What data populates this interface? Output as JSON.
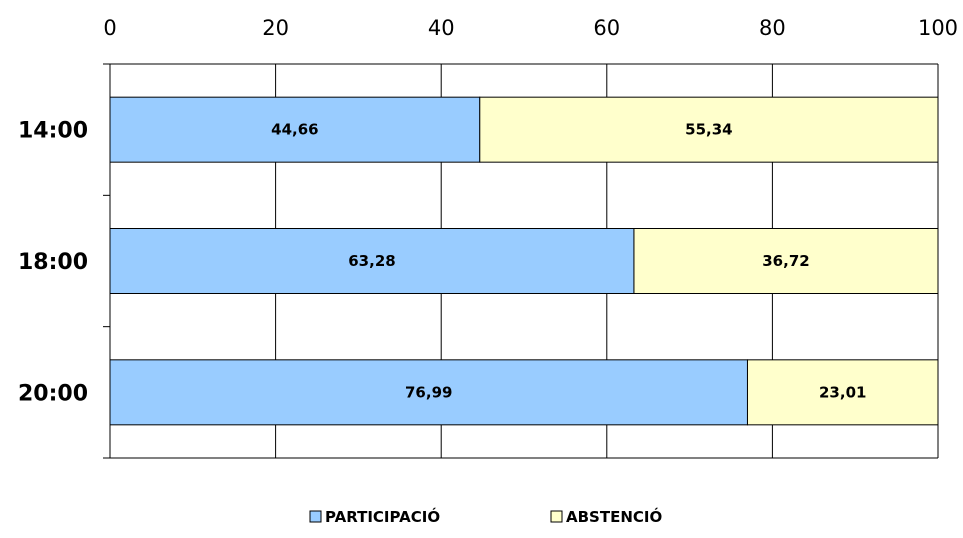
{
  "chart_data": {
    "type": "bar",
    "orientation": "horizontal",
    "stacked": true,
    "categories": [
      "14:00",
      "18:00",
      "20:00"
    ],
    "series": [
      {
        "name": "PARTICIPACIÓ",
        "values": [
          44.66,
          63.28,
          76.99
        ],
        "labels": [
          "44,66",
          "63,28",
          "76,99"
        ],
        "color": "#99ccff"
      },
      {
        "name": "ABSTENCIÓ",
        "values": [
          55.34,
          36.72,
          23.01
        ],
        "labels": [
          "55,34",
          "36,72",
          "23,01"
        ],
        "color": "#ffffcc"
      }
    ],
    "xlim": [
      0,
      100
    ],
    "xticks": [
      0,
      20,
      40,
      60,
      80,
      100
    ],
    "xtick_labels": [
      "0",
      "20",
      "40",
      "60",
      "80",
      "100"
    ],
    "x_axis_position": "top",
    "grid": true,
    "legend_position": "bottom",
    "title": "",
    "xlabel": "",
    "ylabel": ""
  }
}
